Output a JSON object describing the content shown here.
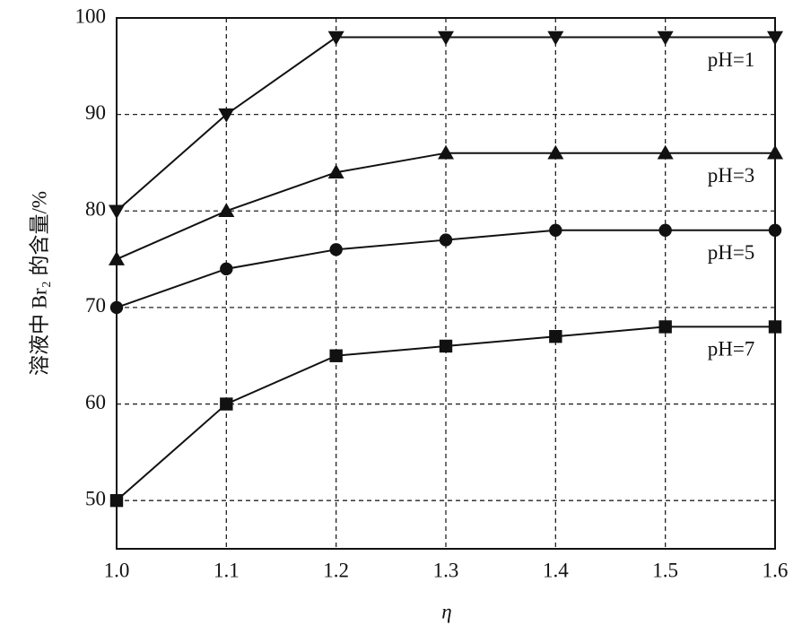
{
  "chart_data": {
    "type": "line",
    "xlabel": "η",
    "ylabel": "溶液中 Br₂ 的含量/%",
    "x": [
      1.0,
      1.1,
      1.2,
      1.3,
      1.4,
      1.5,
      1.6
    ],
    "series": [
      {
        "name": "pH=1",
        "color": "#111111",
        "marker": "triangle-down",
        "values": [
          80,
          90,
          98,
          98,
          98,
          98,
          98
        ]
      },
      {
        "name": "pH=3",
        "color": "#111111",
        "marker": "triangle-up",
        "values": [
          75,
          80,
          84,
          86,
          86,
          86,
          86
        ]
      },
      {
        "name": "pH=5",
        "color": "#111111",
        "marker": "circle",
        "values": [
          70,
          74,
          76,
          77,
          78,
          78,
          78
        ]
      },
      {
        "name": "pH=7",
        "color": "#111111",
        "marker": "square",
        "values": [
          50,
          60,
          65,
          66,
          67,
          68,
          68
        ]
      }
    ],
    "xlim": [
      1.0,
      1.6
    ],
    "xticks": [
      {
        "value": 1.0,
        "label": "1.0"
      },
      1.1,
      1.2,
      1.3,
      1.4,
      1.5,
      1.6
    ],
    "ylim": [
      45,
      100
    ],
    "yticks": [
      50,
      60,
      70,
      80,
      90,
      100
    ],
    "grid": true
  }
}
